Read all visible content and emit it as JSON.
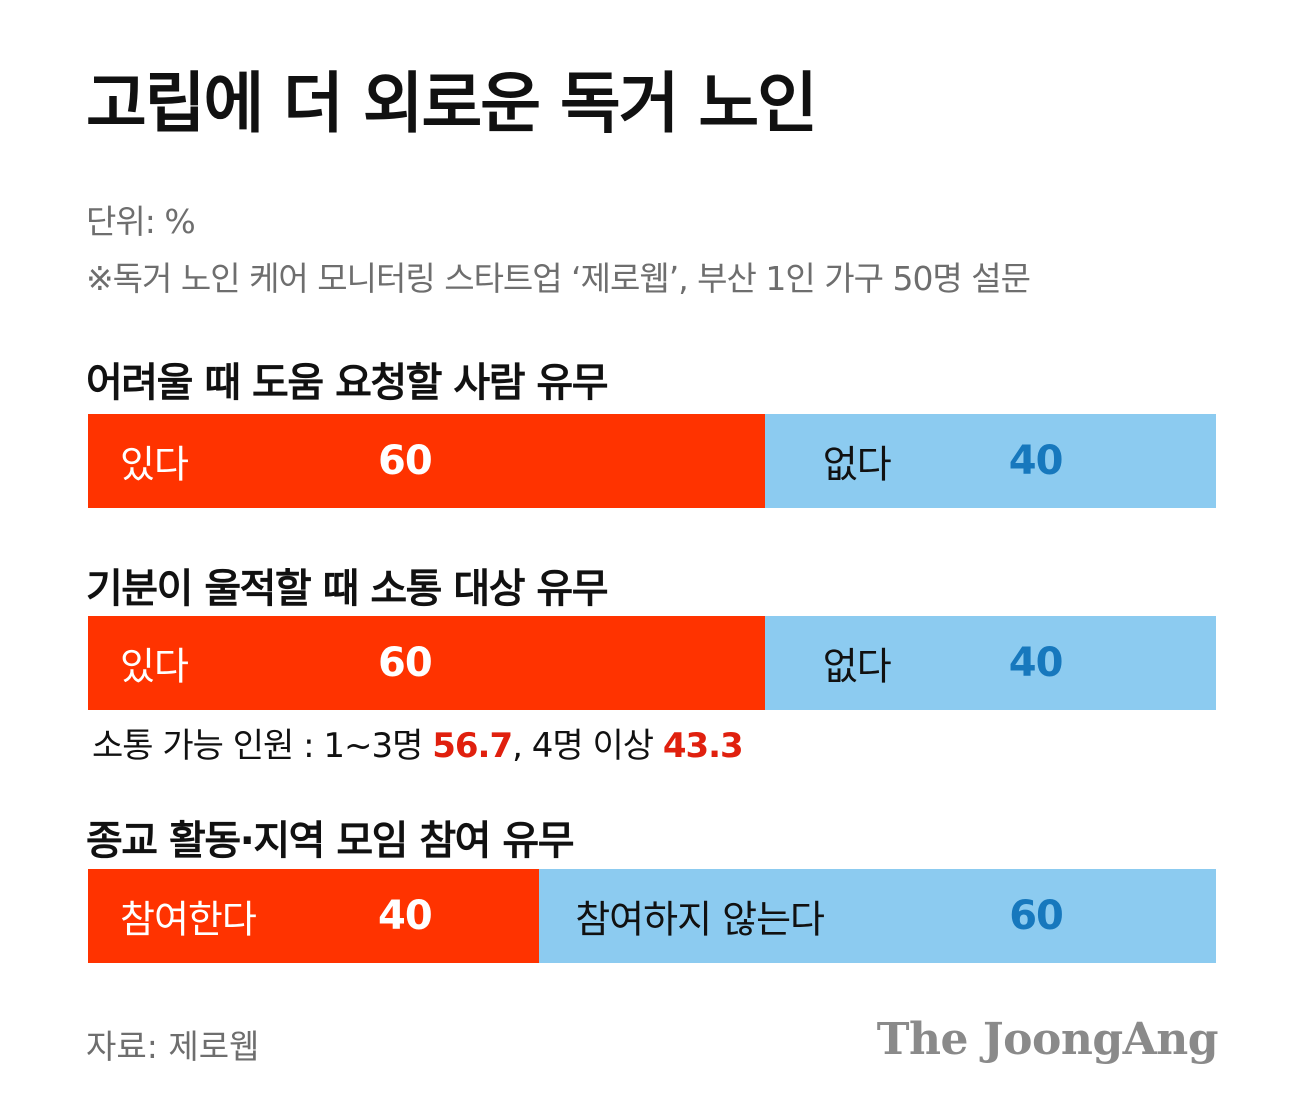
{
  "header": {
    "title": "고립에 더 외로운 독거 노인",
    "unit": "단위: %",
    "note": "※독거 노인 케어 모니터링 스타트업 ‘제로웹’, 부산 1인 가구 50명 설문"
  },
  "chart_data": [
    {
      "type": "bar",
      "title": "어려울 때 도움 요청할 사람 유무",
      "categories": [
        "있다",
        "없다"
      ],
      "values": [
        60,
        40
      ],
      "colors": [
        "#ff3300",
        "#8ccbf0"
      ]
    },
    {
      "type": "bar",
      "title": "기분이 울적할 때 소통 대상 유무",
      "categories": [
        "있다",
        "없다"
      ],
      "values": [
        60,
        40
      ],
      "colors": [
        "#ff3300",
        "#8ccbf0"
      ]
    },
    {
      "type": "bar",
      "title": "종교 활동·지역 모임 참여 유무",
      "categories": [
        "참여한다",
        "참여하지 않는다"
      ],
      "values": [
        40,
        60
      ],
      "colors": [
        "#ff3300",
        "#8ccbf0"
      ]
    }
  ],
  "note2": {
    "prefix": "소통 가능 인원 : 1~3명 ",
    "v1": "56.7",
    "mid": ", 4명 이상 ",
    "v2": "43.3"
  },
  "footer": {
    "source": "자료: 제로웹",
    "logo": "The JoongAng"
  }
}
